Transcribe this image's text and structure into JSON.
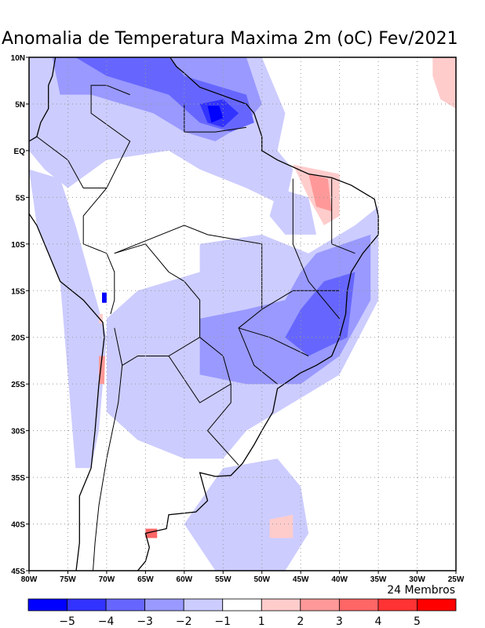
{
  "title": "Anomalia de Temperatura Maxima 2m (oC) Fev/2021",
  "members_label": "24 Membros",
  "lat_labels": [
    "10N",
    "5N",
    "EQ",
    "5S",
    "10S",
    "15S",
    "20S",
    "25S",
    "30S",
    "35S",
    "40S",
    "45S"
  ],
  "lon_labels": [
    "80W",
    "75W",
    "70W",
    "65W",
    "60W",
    "55W",
    "50W",
    "45W",
    "40W",
    "35W",
    "30W",
    "25W"
  ],
  "colorbar": {
    "colors": [
      "#0000ff",
      "#3333ff",
      "#6666ff",
      "#9999ff",
      "#ccccff",
      "#ffffff",
      "#ffcccc",
      "#ff9999",
      "#ff6666",
      "#ff3333",
      "#ff0000"
    ],
    "labels": [
      "-5",
      "-4",
      "-3",
      "-2",
      "-1",
      "1",
      "2",
      "3",
      "4",
      "5"
    ]
  }
}
